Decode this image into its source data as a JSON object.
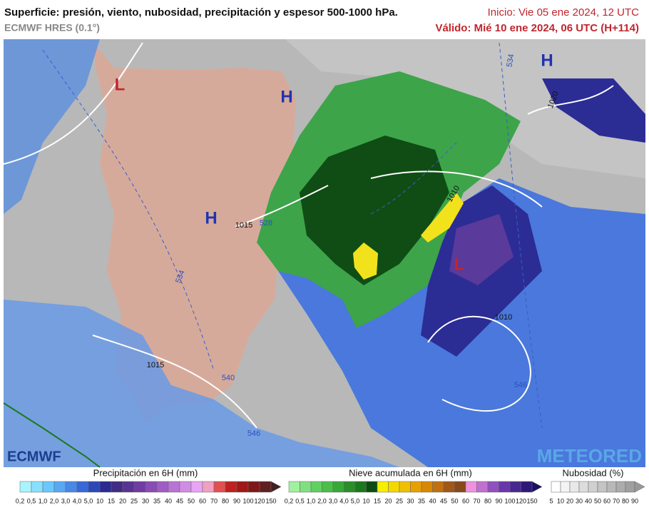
{
  "header": {
    "title": "Superficie: presión, viento, nubosidad, precipitación y espesor 500-1000 hPa.",
    "model": "ECMWF HRES (0.1°)",
    "init": "Inicio: Vie 05 ene 2024, 12 UTC",
    "valid": "Válido: Mié 10 ene 2024, 06 UTC (H+114)"
  },
  "map": {
    "centers": [
      "L",
      "H",
      "H",
      "L",
      "H"
    ],
    "isobar_labels": [
      "1015",
      "1015",
      "1010",
      "1010",
      "1020"
    ],
    "thickness_labels": [
      "528",
      "534",
      "540",
      "546",
      "546",
      "534"
    ]
  },
  "logos": {
    "left": "ECMWF",
    "right": "METEORED"
  },
  "legends": [
    {
      "title": "Precipitación en 6H (mm)",
      "labels": [
        "0,2",
        "0,5",
        "1,0",
        "2,0",
        "3,0",
        "4,0",
        "5,0",
        "10",
        "15",
        "20",
        "25",
        "30",
        "35",
        "40",
        "45",
        "50",
        "60",
        "70",
        "80",
        "90",
        "100",
        "120",
        "150"
      ]
    },
    {
      "title": "Nieve acumulada en 6H (mm)",
      "labels": [
        "0,2",
        "0,5",
        "1,0",
        "2,0",
        "3,0",
        "4,0",
        "5,0",
        "10",
        "15",
        "20",
        "25",
        "30",
        "35",
        "40",
        "45",
        "50",
        "60",
        "70",
        "80",
        "90",
        "100",
        "120",
        "150"
      ]
    },
    {
      "title": "Nubosidad (%)",
      "labels": [
        "5",
        "10",
        "20",
        "30",
        "40",
        "50",
        "60",
        "70",
        "80",
        "90"
      ]
    }
  ]
}
